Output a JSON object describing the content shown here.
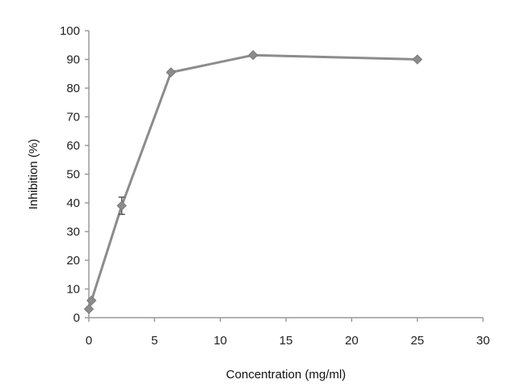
{
  "chart_data": {
    "type": "line",
    "xlabel": "Concentration (mg/ml)",
    "ylabel": "Inhibition (%)",
    "xlim": [
      0,
      30
    ],
    "ylim": [
      0,
      100
    ],
    "xticks": [
      0,
      5,
      10,
      15,
      20,
      25,
      30
    ],
    "yticks": [
      0,
      10,
      20,
      30,
      40,
      50,
      60,
      70,
      80,
      90,
      100
    ],
    "grid": false,
    "legend": "none",
    "series": [
      {
        "color": "#8c8c8c",
        "points": [
          {
            "x": 0,
            "y": 3,
            "err": 0.5
          },
          {
            "x": 0.2,
            "y": 6,
            "err": 0.5
          },
          {
            "x": 2.5,
            "y": 39,
            "err": 3
          },
          {
            "x": 6.25,
            "y": 85.5,
            "err": 0.5
          },
          {
            "x": 12.5,
            "y": 91.5,
            "err": 0.5
          },
          {
            "x": 25,
            "y": 90,
            "err": 0.5
          }
        ]
      }
    ]
  }
}
